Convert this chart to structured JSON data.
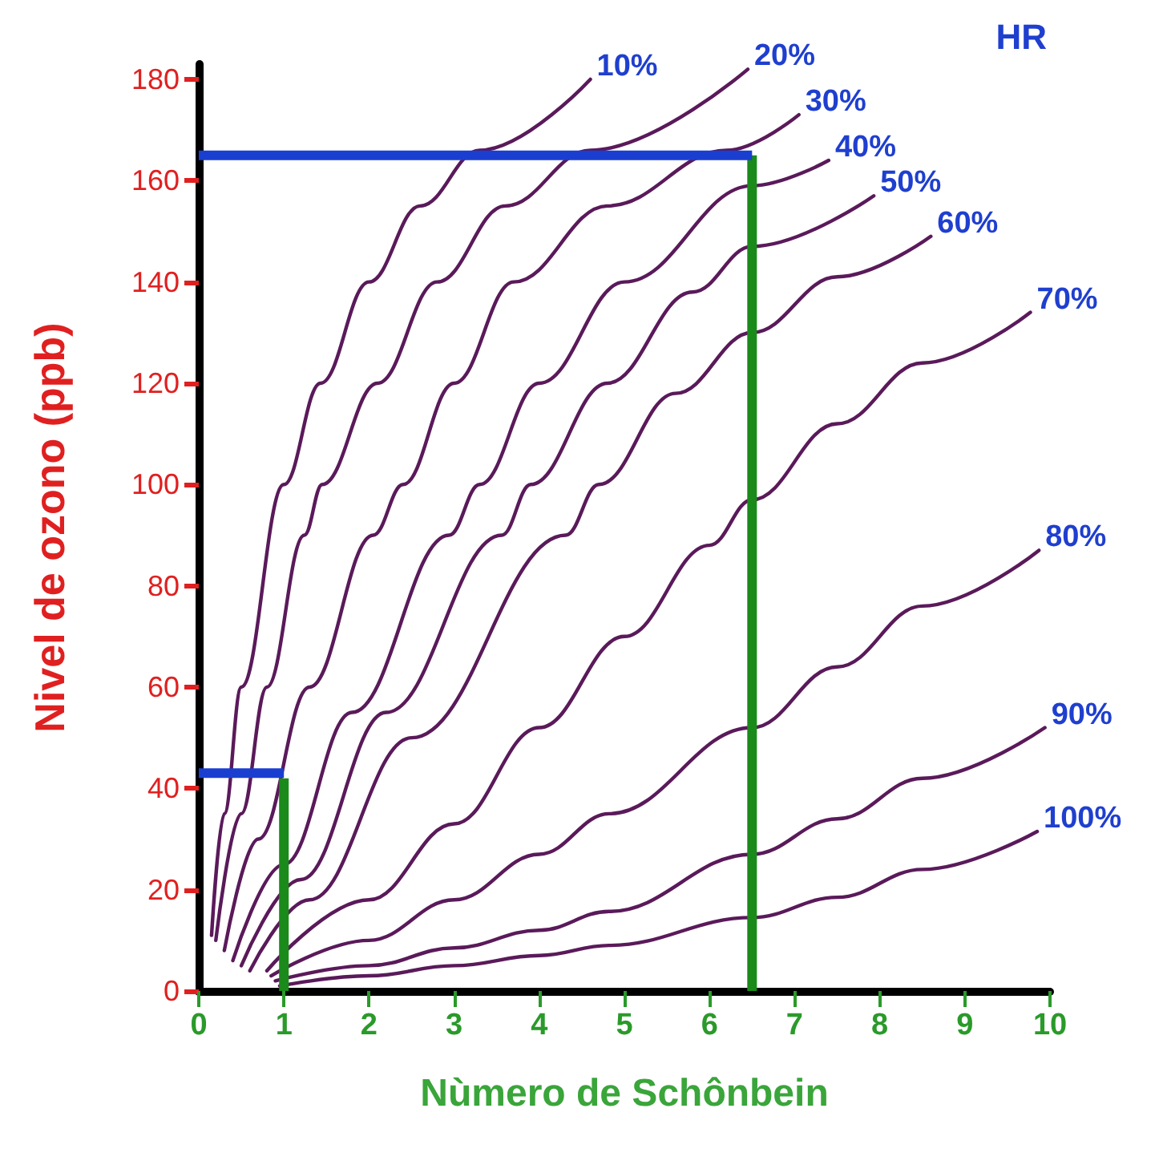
{
  "chart_data": {
    "type": "line",
    "xlabel": "Nùmero de Schônbein",
    "ylabel": "Nivel de ozono (ppb)",
    "legend_title": "HR",
    "xlim": [
      0,
      10
    ],
    "ylim": [
      0,
      183
    ],
    "xticks": [
      0,
      1,
      2,
      3,
      4,
      5,
      6,
      7,
      8,
      9,
      10
    ],
    "yticks": [
      0,
      20,
      40,
      60,
      80,
      100,
      120,
      140,
      160,
      180
    ],
    "grid": false,
    "legend": false,
    "marker": "none",
    "line_style": "solid",
    "series": [
      {
        "name": "10%",
        "color": "#5a1a5a",
        "x": [
          0.15,
          0.3,
          0.5,
          1.0,
          1.43,
          2.0,
          2.6,
          3.3,
          4.6
        ],
        "values": [
          11,
          35,
          60,
          100,
          120,
          140,
          155,
          166,
          180
        ]
      },
      {
        "name": "20%",
        "color": "#5a1a5a",
        "x": [
          0.2,
          0.5,
          0.8,
          1.24,
          1.45,
          2.1,
          2.8,
          3.6,
          4.6,
          6.45
        ],
        "values": [
          10,
          35,
          60,
          90,
          100,
          120,
          140,
          155,
          166,
          182
        ]
      },
      {
        "name": "30%",
        "color": "#5a1a5a",
        "x": [
          0.3,
          0.7,
          1.3,
          2.05,
          2.4,
          3.0,
          3.7,
          4.8,
          6.2,
          7.05
        ],
        "values": [
          8,
          30,
          60,
          90,
          100,
          120,
          140,
          155,
          166,
          173
        ]
      },
      {
        "name": "40%",
        "color": "#5a1a5a",
        "x": [
          0.4,
          1.0,
          1.8,
          2.94,
          3.3,
          4.0,
          5.0,
          6.5,
          7.4
        ],
        "values": [
          6,
          25,
          55,
          90,
          100,
          120,
          140,
          159,
          164
        ]
      },
      {
        "name": "50%",
        "color": "#5a1a5a",
        "x": [
          0.5,
          1.2,
          2.2,
          3.56,
          3.9,
          4.8,
          5.8,
          6.5,
          7.93
        ],
        "values": [
          5,
          22,
          55,
          90,
          100,
          120,
          138,
          147,
          157
        ]
      },
      {
        "name": "60%",
        "color": "#5a1a5a",
        "x": [
          0.6,
          1.3,
          2.5,
          4.31,
          4.7,
          5.6,
          6.5,
          7.5,
          8.6
        ],
        "values": [
          4,
          18,
          50,
          90,
          100,
          118,
          130,
          141,
          149
        ]
      },
      {
        "name": "70%",
        "color": "#5a1a5a",
        "x": [
          0.8,
          2,
          3,
          4,
          5,
          6,
          6.5,
          7.5,
          8.5,
          9.77
        ],
        "values": [
          4,
          18,
          33,
          52,
          70,
          88,
          97,
          112,
          124,
          134
        ]
      },
      {
        "name": "80%",
        "color": "#5a1a5a",
        "x": [
          0.85,
          2,
          3,
          4,
          4.82,
          6.5,
          7.5,
          8.5,
          9.87
        ],
        "values": [
          3,
          10,
          18,
          27,
          35,
          52,
          64,
          76,
          87
        ]
      },
      {
        "name": "90%",
        "color": "#5a1a5a",
        "x": [
          0.9,
          2,
          3,
          4,
          4.82,
          6.5,
          7.5,
          8.5,
          9.94
        ],
        "values": [
          2,
          5,
          8.5,
          12,
          15.7,
          27,
          34,
          42,
          52
        ]
      },
      {
        "name": "100%",
        "color": "#5a1a5a",
        "x": [
          0.95,
          2,
          3,
          4,
          4.82,
          6.5,
          7.5,
          8.5,
          9.85
        ],
        "values": [
          1,
          3,
          5,
          7,
          9,
          14.5,
          18.5,
          24,
          31.5
        ]
      },
      {
        "color": "#1a8a1a",
        "x": [
          1,
          1
        ],
        "values": [
          0,
          42
        ]
      },
      {
        "color": "#1a8a1a",
        "x": [
          6.5,
          6.5
        ],
        "values": [
          0,
          165
        ]
      },
      {
        "color": "#1a3fd0",
        "x": [
          1,
          0
        ],
        "values": [
          43,
          43
        ]
      },
      {
        "color": "#1a3fd0",
        "x": [
          6.5,
          0
        ],
        "values": [
          165,
          165
        ]
      }
    ]
  }
}
